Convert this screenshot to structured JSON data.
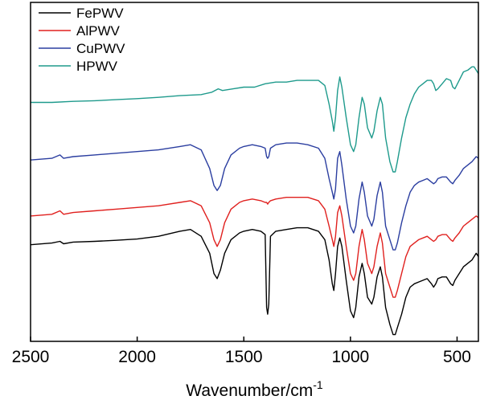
{
  "chart_data": {
    "type": "line",
    "title": "",
    "xlabel": "Wavenumber/cm",
    "xlabel_superscript": "-1",
    "ylabel": "",
    "x_reversed": true,
    "xlim": [
      2500,
      400
    ],
    "ylim": [
      0,
      1
    ],
    "xticks": [
      2500,
      2000,
      1500,
      1000,
      500
    ],
    "yticks": [],
    "grid": false,
    "legend_position": "top-left",
    "series": [
      {
        "name": "FePWV",
        "color": "#000000",
        "points": [
          [
            2500,
            0.285
          ],
          [
            2400,
            0.29
          ],
          [
            2362,
            0.295
          ],
          [
            2345,
            0.288
          ],
          [
            2300,
            0.293
          ],
          [
            2200,
            0.295
          ],
          [
            2100,
            0.298
          ],
          [
            2000,
            0.302
          ],
          [
            1900,
            0.31
          ],
          [
            1800,
            0.325
          ],
          [
            1750,
            0.33
          ],
          [
            1700,
            0.31
          ],
          [
            1660,
            0.26
          ],
          [
            1640,
            0.2
          ],
          [
            1625,
            0.185
          ],
          [
            1610,
            0.21
          ],
          [
            1590,
            0.26
          ],
          [
            1560,
            0.3
          ],
          [
            1520,
            0.32
          ],
          [
            1500,
            0.325
          ],
          [
            1460,
            0.33
          ],
          [
            1420,
            0.325
          ],
          [
            1400,
            0.315
          ],
          [
            1393,
            0.1
          ],
          [
            1388,
            0.08
          ],
          [
            1383,
            0.11
          ],
          [
            1375,
            0.31
          ],
          [
            1350,
            0.325
          ],
          [
            1300,
            0.33
          ],
          [
            1250,
            0.335
          ],
          [
            1200,
            0.335
          ],
          [
            1150,
            0.325
          ],
          [
            1120,
            0.3
          ],
          [
            1100,
            0.24
          ],
          [
            1085,
            0.17
          ],
          [
            1078,
            0.15
          ],
          [
            1070,
            0.2
          ],
          [
            1060,
            0.28
          ],
          [
            1050,
            0.305
          ],
          [
            1040,
            0.28
          ],
          [
            1020,
            0.18
          ],
          [
            1000,
            0.09
          ],
          [
            985,
            0.07
          ],
          [
            975,
            0.1
          ],
          [
            960,
            0.19
          ],
          [
            945,
            0.23
          ],
          [
            935,
            0.2
          ],
          [
            920,
            0.13
          ],
          [
            900,
            0.11
          ],
          [
            890,
            0.13
          ],
          [
            875,
            0.19
          ],
          [
            860,
            0.22
          ],
          [
            850,
            0.19
          ],
          [
            835,
            0.1
          ],
          [
            815,
            0.05
          ],
          [
            800,
            0.02
          ],
          [
            790,
            0.02
          ],
          [
            780,
            0.04
          ],
          [
            760,
            0.08
          ],
          [
            740,
            0.13
          ],
          [
            720,
            0.16
          ],
          [
            700,
            0.17
          ],
          [
            680,
            0.175
          ],
          [
            660,
            0.18
          ],
          [
            640,
            0.185
          ],
          [
            620,
            0.17
          ],
          [
            610,
            0.16
          ],
          [
            600,
            0.17
          ],
          [
            590,
            0.185
          ],
          [
            570,
            0.19
          ],
          [
            550,
            0.19
          ],
          [
            530,
            0.17
          ],
          [
            520,
            0.165
          ],
          [
            510,
            0.18
          ],
          [
            490,
            0.2
          ],
          [
            470,
            0.22
          ],
          [
            450,
            0.23
          ],
          [
            430,
            0.24
          ],
          [
            410,
            0.26
          ],
          [
            400,
            0.25
          ]
        ]
      },
      {
        "name": "AlPWV",
        "color": "#e0201e",
        "points": [
          [
            2500,
            0.37
          ],
          [
            2400,
            0.375
          ],
          [
            2362,
            0.385
          ],
          [
            2345,
            0.375
          ],
          [
            2300,
            0.38
          ],
          [
            2200,
            0.385
          ],
          [
            2100,
            0.39
          ],
          [
            2000,
            0.395
          ],
          [
            1900,
            0.4
          ],
          [
            1800,
            0.41
          ],
          [
            1750,
            0.415
          ],
          [
            1700,
            0.4
          ],
          [
            1660,
            0.35
          ],
          [
            1640,
            0.3
          ],
          [
            1625,
            0.28
          ],
          [
            1610,
            0.3
          ],
          [
            1590,
            0.35
          ],
          [
            1560,
            0.39
          ],
          [
            1520,
            0.41
          ],
          [
            1500,
            0.415
          ],
          [
            1460,
            0.42
          ],
          [
            1420,
            0.415
          ],
          [
            1400,
            0.41
          ],
          [
            1393,
            0.41
          ],
          [
            1388,
            0.405
          ],
          [
            1383,
            0.41
          ],
          [
            1375,
            0.415
          ],
          [
            1350,
            0.42
          ],
          [
            1300,
            0.425
          ],
          [
            1250,
            0.425
          ],
          [
            1200,
            0.425
          ],
          [
            1150,
            0.415
          ],
          [
            1120,
            0.39
          ],
          [
            1100,
            0.34
          ],
          [
            1085,
            0.3
          ],
          [
            1078,
            0.28
          ],
          [
            1070,
            0.31
          ],
          [
            1060,
            0.38
          ],
          [
            1050,
            0.4
          ],
          [
            1040,
            0.37
          ],
          [
            1020,
            0.28
          ],
          [
            1000,
            0.2
          ],
          [
            985,
            0.18
          ],
          [
            975,
            0.2
          ],
          [
            960,
            0.28
          ],
          [
            945,
            0.33
          ],
          [
            935,
            0.3
          ],
          [
            920,
            0.23
          ],
          [
            900,
            0.2
          ],
          [
            890,
            0.22
          ],
          [
            875,
            0.28
          ],
          [
            860,
            0.32
          ],
          [
            850,
            0.29
          ],
          [
            835,
            0.2
          ],
          [
            815,
            0.16
          ],
          [
            800,
            0.13
          ],
          [
            790,
            0.13
          ],
          [
            780,
            0.15
          ],
          [
            760,
            0.2
          ],
          [
            740,
            0.25
          ],
          [
            720,
            0.28
          ],
          [
            700,
            0.29
          ],
          [
            680,
            0.3
          ],
          [
            660,
            0.305
          ],
          [
            640,
            0.31
          ],
          [
            620,
            0.3
          ],
          [
            610,
            0.295
          ],
          [
            600,
            0.3
          ],
          [
            590,
            0.31
          ],
          [
            570,
            0.315
          ],
          [
            550,
            0.315
          ],
          [
            530,
            0.3
          ],
          [
            520,
            0.295
          ],
          [
            510,
            0.305
          ],
          [
            490,
            0.32
          ],
          [
            470,
            0.34
          ],
          [
            450,
            0.35
          ],
          [
            430,
            0.36
          ],
          [
            410,
            0.37
          ],
          [
            400,
            0.365
          ]
        ]
      },
      {
        "name": "CuPWV",
        "color": "#2b3ea0",
        "points": [
          [
            2500,
            0.535
          ],
          [
            2400,
            0.54
          ],
          [
            2362,
            0.55
          ],
          [
            2345,
            0.54
          ],
          [
            2300,
            0.545
          ],
          [
            2200,
            0.55
          ],
          [
            2100,
            0.555
          ],
          [
            2000,
            0.56
          ],
          [
            1900,
            0.565
          ],
          [
            1800,
            0.575
          ],
          [
            1750,
            0.58
          ],
          [
            1700,
            0.565
          ],
          [
            1660,
            0.51
          ],
          [
            1640,
            0.46
          ],
          [
            1625,
            0.445
          ],
          [
            1610,
            0.46
          ],
          [
            1590,
            0.51
          ],
          [
            1560,
            0.55
          ],
          [
            1520,
            0.57
          ],
          [
            1500,
            0.575
          ],
          [
            1460,
            0.58
          ],
          [
            1420,
            0.575
          ],
          [
            1400,
            0.57
          ],
          [
            1393,
            0.545
          ],
          [
            1388,
            0.54
          ],
          [
            1383,
            0.545
          ],
          [
            1375,
            0.57
          ],
          [
            1350,
            0.58
          ],
          [
            1300,
            0.585
          ],
          [
            1250,
            0.585
          ],
          [
            1200,
            0.58
          ],
          [
            1150,
            0.57
          ],
          [
            1120,
            0.54
          ],
          [
            1100,
            0.48
          ],
          [
            1085,
            0.44
          ],
          [
            1078,
            0.42
          ],
          [
            1070,
            0.45
          ],
          [
            1060,
            0.54
          ],
          [
            1050,
            0.56
          ],
          [
            1040,
            0.52
          ],
          [
            1020,
            0.42
          ],
          [
            1000,
            0.34
          ],
          [
            985,
            0.32
          ],
          [
            975,
            0.34
          ],
          [
            960,
            0.42
          ],
          [
            945,
            0.47
          ],
          [
            935,
            0.44
          ],
          [
            920,
            0.37
          ],
          [
            900,
            0.34
          ],
          [
            890,
            0.36
          ],
          [
            875,
            0.43
          ],
          [
            860,
            0.47
          ],
          [
            850,
            0.44
          ],
          [
            835,
            0.34
          ],
          [
            815,
            0.3
          ],
          [
            800,
            0.27
          ],
          [
            790,
            0.27
          ],
          [
            780,
            0.29
          ],
          [
            760,
            0.35
          ],
          [
            740,
            0.4
          ],
          [
            720,
            0.44
          ],
          [
            700,
            0.46
          ],
          [
            680,
            0.47
          ],
          [
            660,
            0.475
          ],
          [
            640,
            0.48
          ],
          [
            620,
            0.47
          ],
          [
            610,
            0.465
          ],
          [
            600,
            0.47
          ],
          [
            590,
            0.48
          ],
          [
            570,
            0.485
          ],
          [
            550,
            0.485
          ],
          [
            530,
            0.47
          ],
          [
            520,
            0.465
          ],
          [
            510,
            0.475
          ],
          [
            490,
            0.49
          ],
          [
            470,
            0.51
          ],
          [
            450,
            0.52
          ],
          [
            430,
            0.53
          ],
          [
            410,
            0.545
          ],
          [
            400,
            0.54
          ]
        ]
      },
      {
        "name": "HPWV",
        "color": "#1e9a8c",
        "points": [
          [
            2500,
            0.705
          ],
          [
            2400,
            0.705
          ],
          [
            2300,
            0.708
          ],
          [
            2200,
            0.71
          ],
          [
            2100,
            0.713
          ],
          [
            2000,
            0.716
          ],
          [
            1900,
            0.72
          ],
          [
            1800,
            0.725
          ],
          [
            1700,
            0.728
          ],
          [
            1650,
            0.735
          ],
          [
            1620,
            0.745
          ],
          [
            1600,
            0.74
          ],
          [
            1550,
            0.745
          ],
          [
            1500,
            0.75
          ],
          [
            1450,
            0.75
          ],
          [
            1400,
            0.76
          ],
          [
            1350,
            0.765
          ],
          [
            1300,
            0.765
          ],
          [
            1250,
            0.77
          ],
          [
            1200,
            0.77
          ],
          [
            1150,
            0.77
          ],
          [
            1120,
            0.755
          ],
          [
            1100,
            0.7
          ],
          [
            1085,
            0.65
          ],
          [
            1078,
            0.62
          ],
          [
            1070,
            0.66
          ],
          [
            1060,
            0.74
          ],
          [
            1050,
            0.78
          ],
          [
            1040,
            0.75
          ],
          [
            1020,
            0.66
          ],
          [
            1000,
            0.58
          ],
          [
            985,
            0.56
          ],
          [
            975,
            0.58
          ],
          [
            960,
            0.66
          ],
          [
            945,
            0.72
          ],
          [
            935,
            0.7
          ],
          [
            920,
            0.63
          ],
          [
            900,
            0.6
          ],
          [
            890,
            0.62
          ],
          [
            875,
            0.68
          ],
          [
            860,
            0.72
          ],
          [
            850,
            0.7
          ],
          [
            835,
            0.6
          ],
          [
            815,
            0.53
          ],
          [
            800,
            0.5
          ],
          [
            790,
            0.5
          ],
          [
            780,
            0.53
          ],
          [
            760,
            0.6
          ],
          [
            740,
            0.66
          ],
          [
            720,
            0.7
          ],
          [
            700,
            0.73
          ],
          [
            680,
            0.75
          ],
          [
            660,
            0.76
          ],
          [
            640,
            0.77
          ],
          [
            620,
            0.77
          ],
          [
            610,
            0.76
          ],
          [
            600,
            0.74
          ],
          [
            590,
            0.745
          ],
          [
            570,
            0.76
          ],
          [
            550,
            0.775
          ],
          [
            530,
            0.77
          ],
          [
            520,
            0.75
          ],
          [
            510,
            0.745
          ],
          [
            490,
            0.77
          ],
          [
            470,
            0.795
          ],
          [
            450,
            0.8
          ],
          [
            430,
            0.81
          ],
          [
            420,
            0.81
          ],
          [
            410,
            0.8
          ],
          [
            400,
            0.79
          ]
        ]
      }
    ]
  }
}
